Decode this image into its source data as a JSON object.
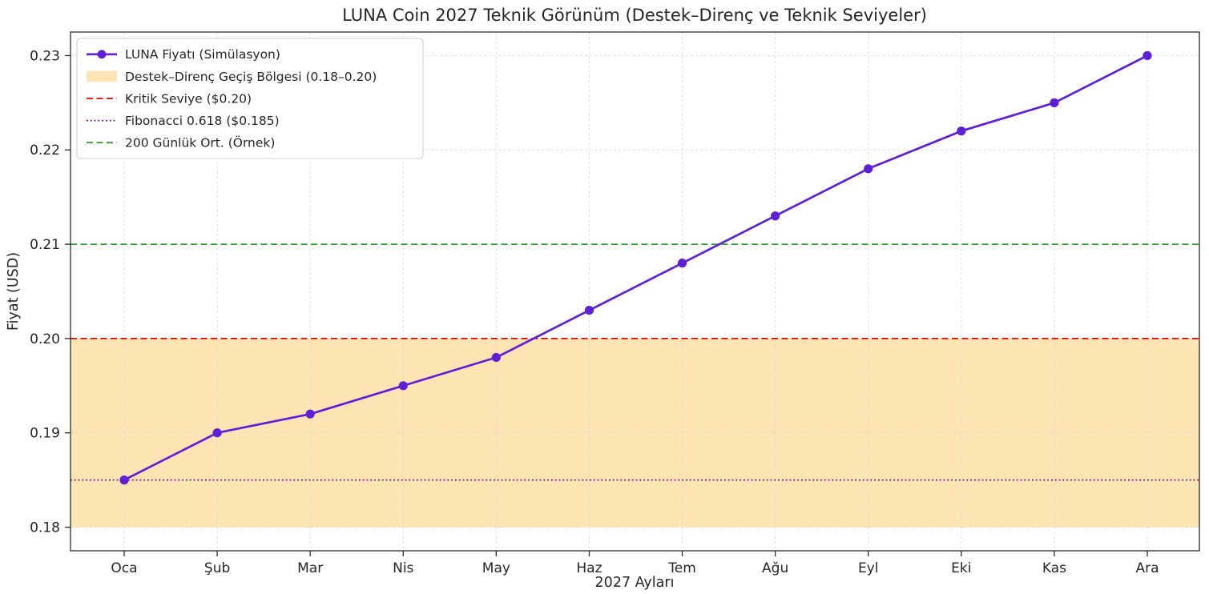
{
  "figure": {
    "background": "#ffffff"
  },
  "chart_data": {
    "type": "line",
    "title": "LUNA Coin 2027 Teknik Görünüm (Destek–Direnç ve Teknik Seviyeler)",
    "xlabel": "2027 Ayları",
    "ylabel": "Fiyat (USD)",
    "categories": [
      "Oca",
      "Şub",
      "Mar",
      "Nis",
      "May",
      "Haz",
      "Tem",
      "Ağu",
      "Eyl",
      "Eki",
      "Kas",
      "Ara"
    ],
    "series": [
      {
        "name": "LUNA Fiyatı (Simülasyon)",
        "values": [
          0.185,
          0.19,
          0.192,
          0.195,
          0.198,
          0.203,
          0.208,
          0.213,
          0.218,
          0.222,
          0.225,
          0.23
        ],
        "color": "#5e1fd6",
        "marker": "circle",
        "line_style": "solid"
      }
    ],
    "band": {
      "label": "Destek–Direnç Geçiş Bölgesi (0.18–0.20)",
      "from": 0.18,
      "to": 0.2,
      "color": "#fce5b2"
    },
    "hlines": [
      {
        "label": "Kritik Seviye ($0.20)",
        "y": 0.2,
        "color": "#e60000",
        "style": "dashed"
      },
      {
        "label": "Fibonacci 0.618 ($0.185)",
        "y": 0.185,
        "color": "#800080",
        "style": "dotted"
      },
      {
        "label": "200 Günlük Ort. (Örnek)",
        "y": 0.21,
        "color": "#2ca02c",
        "style": "dashed"
      }
    ],
    "ylim": [
      0.1775,
      0.2325
    ],
    "yticks": [
      0.18,
      0.19,
      0.2,
      0.21,
      0.22,
      0.23
    ],
    "grid": true,
    "grid_color": "#d4d4d4",
    "spine_color": "#2b2b2b",
    "legend_position": "upper-left"
  }
}
